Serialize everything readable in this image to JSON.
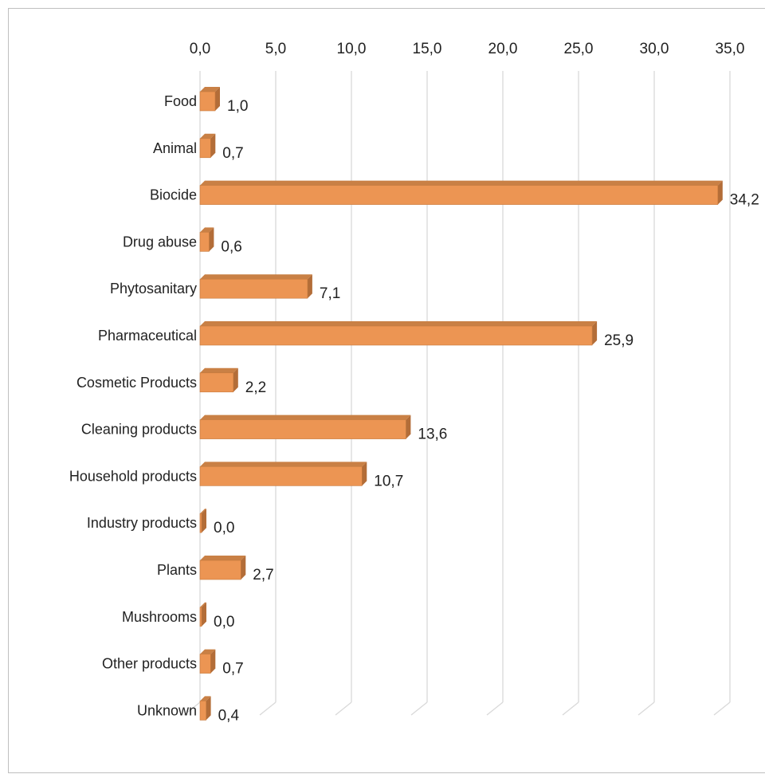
{
  "chart_data": {
    "type": "bar",
    "orientation": "horizontal",
    "style": "3d-clustered",
    "title": "",
    "xlabel": "",
    "ylabel": "",
    "categories": [
      "Food",
      "Animal",
      "Biocide",
      "Drug abuse",
      "Phytosanitary",
      "Pharmaceutical",
      "Cosmetic Products",
      "Cleaning products",
      "Household products",
      "Industry products",
      "Plants",
      "Mushrooms",
      "Other products",
      "Unknown"
    ],
    "values": [
      1.0,
      0.7,
      34.2,
      0.6,
      7.1,
      25.9,
      2.2,
      13.6,
      10.7,
      0.0,
      2.7,
      0.0,
      0.7,
      0.4
    ],
    "value_labels": [
      "1,0",
      "0,7",
      "34,2",
      "0,6",
      "7,1",
      "25,9",
      "2,2",
      "13,6",
      "10,7",
      "0,0",
      "2,7",
      "0,0",
      "0,7",
      "0,4"
    ],
    "axis_ticks": [
      "0,0",
      "5,0",
      "10,0",
      "15,0",
      "20,0",
      "25,0",
      "30,0",
      "35,0"
    ],
    "axis_tick_values": [
      0,
      5,
      10,
      15,
      20,
      25,
      30,
      35
    ],
    "xlim": [
      0,
      35
    ],
    "axis_position": "top",
    "grid": true,
    "legend": "none",
    "colors": {
      "bar_front": "#EC9553",
      "bar_top": "#C98045",
      "bar_side": "#B36D38",
      "bar_edge": "#C77A3D",
      "grid": "#D9D9D9"
    }
  }
}
